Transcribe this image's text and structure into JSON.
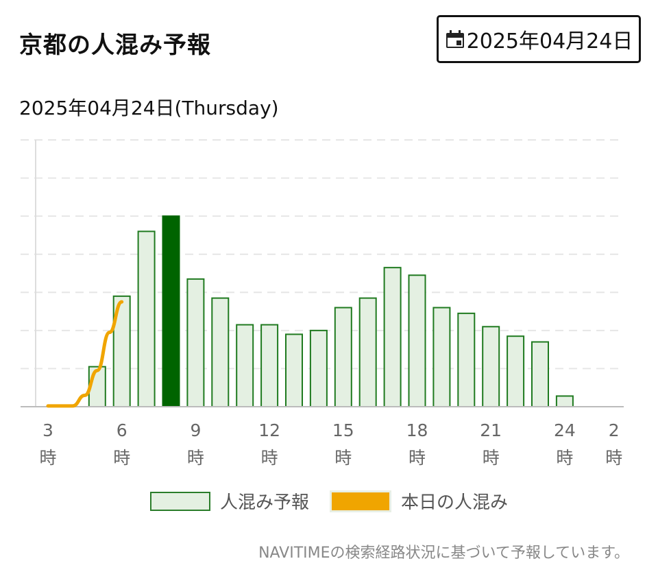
{
  "header": {
    "title": "京都の人混み予報",
    "date_button_label": "2025年04月24日",
    "calendar_icon": "calendar-icon"
  },
  "subtitle": "2025年04月24日(Thursday)",
  "legend": {
    "forecast_label": "人混み予報",
    "today_label": "本日の人混み"
  },
  "footer_note": "NAVITIMEの検索経路状況に基づいて予報しています。",
  "colors": {
    "bar_fill": "#e4f0e2",
    "bar_stroke": "#1f7a1f",
    "highlight_bar": "#006400",
    "today_line": "#f0a500",
    "grid": "#e6e6e6"
  },
  "chart_data": {
    "type": "bar",
    "x_tick_labels": [
      {
        "hour": 3,
        "num": "3",
        "unit": "時"
      },
      {
        "hour": 6,
        "num": "6",
        "unit": "時"
      },
      {
        "hour": 9,
        "num": "9",
        "unit": "時"
      },
      {
        "hour": 12,
        "num": "12",
        "unit": "時"
      },
      {
        "hour": 15,
        "num": "15",
        "unit": "時"
      },
      {
        "hour": 18,
        "num": "18",
        "unit": "時"
      },
      {
        "hour": 21,
        "num": "21",
        "unit": "時"
      },
      {
        "hour": 24,
        "num": "24",
        "unit": "時"
      },
      {
        "hour": 26,
        "num": "2",
        "unit": "時"
      }
    ],
    "ylim": [
      0,
      7
    ],
    "grid": true,
    "legend_position": "bottom",
    "highlight_hour": 8,
    "series": [
      {
        "name": "人混み予報",
        "type": "bar",
        "x": [
          5,
          6,
          7,
          8,
          9,
          10,
          11,
          12,
          13,
          14,
          15,
          16,
          17,
          18,
          19,
          20,
          21,
          22,
          23,
          24
        ],
        "values": [
          1.05,
          2.9,
          4.6,
          5.0,
          3.35,
          2.85,
          2.15,
          2.15,
          1.9,
          2.0,
          2.6,
          2.85,
          3.65,
          3.45,
          2.6,
          2.45,
          2.1,
          1.85,
          1.7,
          0.28
        ]
      },
      {
        "name": "本日の人混み",
        "type": "line",
        "x": [
          3,
          4,
          4.5,
          5,
          5.5,
          6
        ],
        "values": [
          0.02,
          0.02,
          0.3,
          0.95,
          1.95,
          2.75
        ]
      }
    ]
  }
}
